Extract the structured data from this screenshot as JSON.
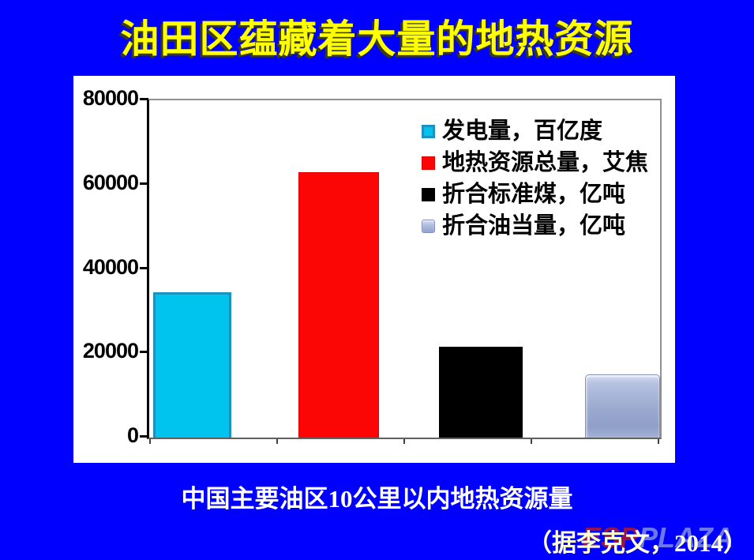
{
  "slide": {
    "title": "油田区蕴藏着大量的地热资源",
    "caption": "中国主要油区10公里以内地热资源量",
    "citation": "（据李克文，2014）",
    "watermark": {
      "left": "ESP",
      "right": "PLAZA"
    },
    "colors": {
      "background": "#0000FE",
      "title": "#FFFF00",
      "caption": "#FFFFFF",
      "citation": "#FFFFD2",
      "panel": "#FFFFFF"
    }
  },
  "chart_data": {
    "type": "bar",
    "title": "",
    "xlabel": "",
    "ylabel": "",
    "categories": [
      "发电量，百亿度",
      "地热资源总量，艾焦",
      "折合标准煤，亿吨",
      "折合油当量，亿吨"
    ],
    "values": [
      34500,
      63000,
      21500,
      15000
    ],
    "ylim": [
      0,
      80000
    ],
    "yticks": [
      80000,
      60000,
      40000,
      20000,
      0
    ],
    "grid": false,
    "legend_position": "upper-right-inside",
    "series_colors": [
      {
        "fill": "#00C4EE",
        "border": "#1A93BF",
        "style": "flat"
      },
      {
        "fill": "#FB0505",
        "border": "#E00000",
        "style": "flat"
      },
      {
        "fill": "#000000",
        "border": "#000000",
        "style": "flat"
      },
      {
        "fill": "#9AA7CC",
        "border": "#8090B8",
        "style": "bevel"
      }
    ]
  }
}
